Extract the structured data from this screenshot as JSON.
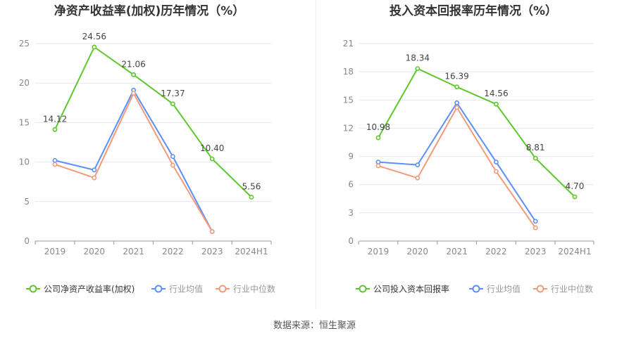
{
  "source_label": "数据来源：恒生聚源",
  "colors": {
    "company": "#5cc82a",
    "industry_avg": "#5b8ff9",
    "industry_median": "#f49a77",
    "grid": "#e3e6ef",
    "axis": "#999999"
  },
  "chart_data": [
    {
      "type": "line",
      "title": "净资产收益率(加权)历年情况（%）",
      "categories": [
        "2019",
        "2020",
        "2021",
        "2022",
        "2023",
        "2024H1"
      ],
      "ylim": [
        0,
        25
      ],
      "yticks": [
        0,
        5,
        10,
        15,
        20,
        25
      ],
      "grid": true,
      "legend_position": "bottom",
      "series": [
        {
          "name": "公司净资产收益率(加权)",
          "color": "#5cc82a",
          "labels": true,
          "values": [
            14.12,
            24.56,
            21.06,
            17.37,
            10.4,
            5.56
          ],
          "value_labels": [
            "14.12",
            "24.56",
            "21.06",
            "17.37",
            "10.40",
            "5.56"
          ]
        },
        {
          "name": "行业均值",
          "color": "#5b8ff9",
          "labels": false,
          "values": [
            10.2,
            9.0,
            19.1,
            10.7,
            1.2,
            null
          ]
        },
        {
          "name": "行业中位数",
          "color": "#f49a77",
          "labels": false,
          "values": [
            9.7,
            8.0,
            18.7,
            9.6,
            1.2,
            null
          ]
        }
      ]
    },
    {
      "type": "line",
      "title": "投入资本回报率历年情况（%）",
      "categories": [
        "2019",
        "2020",
        "2021",
        "2022",
        "2023",
        "2024H1"
      ],
      "ylim": [
        0,
        21
      ],
      "yticks": [
        0,
        3,
        6,
        9,
        12,
        15,
        18,
        21
      ],
      "grid": true,
      "legend_position": "bottom",
      "series": [
        {
          "name": "公司投入资本回报率",
          "color": "#5cc82a",
          "labels": true,
          "values": [
            10.98,
            18.34,
            16.39,
            14.56,
            8.81,
            4.7
          ],
          "value_labels": [
            "10.98",
            "18.34",
            "16.39",
            "14.56",
            "8.81",
            "4.70"
          ]
        },
        {
          "name": "行业均值",
          "color": "#5b8ff9",
          "labels": false,
          "values": [
            8.4,
            8.1,
            14.7,
            8.4,
            2.1,
            null
          ]
        },
        {
          "name": "行业中位数",
          "color": "#f49a77",
          "labels": false,
          "values": [
            8.0,
            6.7,
            14.2,
            7.4,
            1.4,
            null
          ]
        }
      ]
    }
  ]
}
